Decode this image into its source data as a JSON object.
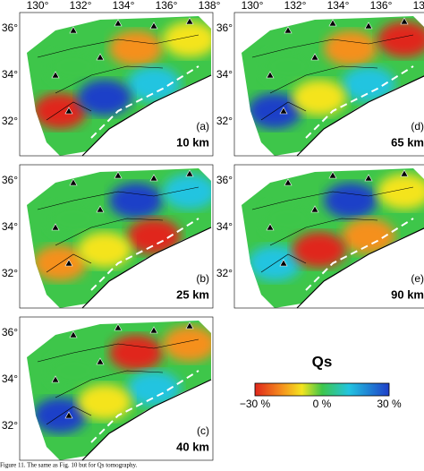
{
  "lon_labels": [
    "130°",
    "132°",
    "134°",
    "136°",
    "138°"
  ],
  "lat_labels": [
    "36°",
    "34°",
    "32°"
  ],
  "panels": [
    {
      "label": "(a)",
      "depth": "10 km"
    },
    {
      "label": "(d)",
      "depth": "65 km"
    },
    {
      "label": "(b)",
      "depth": "25 km"
    },
    {
      "label": "(e)",
      "depth": "90 km"
    },
    {
      "label": "(c)",
      "depth": "40 km"
    }
  ],
  "colorbar": {
    "title": "Qs",
    "labels": [
      "−30 %",
      "0 %",
      "30 %"
    ]
  },
  "caption": "Figure 11. The same as Fig. 10 but for Qs tomography."
}
